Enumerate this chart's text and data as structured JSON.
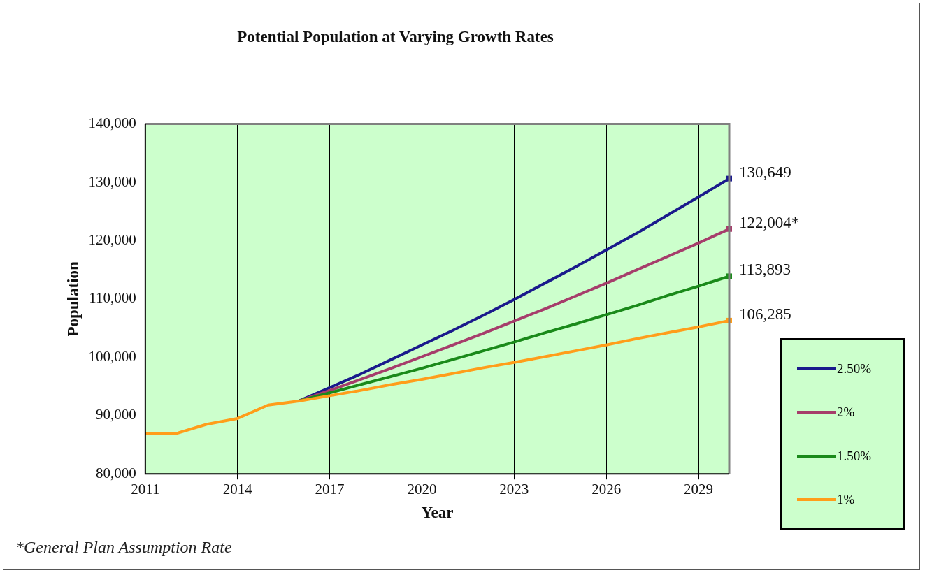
{
  "chart_data": {
    "type": "line",
    "title": "Potential Population at Varying Growth Rates",
    "xlabel": "Year",
    "ylabel": "Population",
    "x": [
      2011,
      2012,
      2013,
      2014,
      2015,
      2016,
      2017,
      2018,
      2019,
      2020,
      2021,
      2022,
      2023,
      2024,
      2025,
      2026,
      2027,
      2028,
      2029,
      2030
    ],
    "xlim": [
      2011,
      2030
    ],
    "xticks": [
      2011,
      2014,
      2017,
      2020,
      2023,
      2026,
      2029
    ],
    "ylim": [
      80000,
      140000
    ],
    "yticks": [
      {
        "value": 80000,
        "label": "80,000"
      },
      {
        "value": 90000,
        "label": "90,000"
      },
      {
        "value": 100000,
        "label": "100,000"
      },
      {
        "value": 110000,
        "label": "110,000"
      },
      {
        "value": 120000,
        "label": "120,000"
      },
      {
        "value": 130000,
        "label": "130,000"
      },
      {
        "value": 140000,
        "label": "140,000"
      }
    ],
    "grid": "x",
    "legend": "bottom right",
    "marker": "none",
    "line_style": "solid",
    "series": [
      {
        "name": "2.50%",
        "color": "#1a1a8c",
        "values": [
          null,
          null,
          null,
          null,
          null,
          92500,
          94800,
          97100,
          99600,
          102100,
          104600,
          107200,
          109900,
          112700,
          115500,
          118400,
          121300,
          124400,
          127500,
          130649
        ],
        "value_labels": [
          null,
          null,
          null,
          null,
          null,
          null,
          null,
          null,
          null,
          null,
          null,
          null,
          null,
          null,
          null,
          null,
          null,
          null,
          null,
          "130,649"
        ]
      },
      {
        "name": "2%",
        "color": "#a63d6b",
        "values": [
          null,
          null,
          null,
          null,
          null,
          92500,
          94300,
          96200,
          98100,
          100100,
          102100,
          104100,
          106200,
          108300,
          110500,
          112700,
          115000,
          117300,
          119600,
          122004
        ],
        "value_labels": [
          null,
          null,
          null,
          null,
          null,
          null,
          null,
          null,
          null,
          null,
          null,
          null,
          null,
          null,
          null,
          null,
          null,
          null,
          null,
          "122,004*"
        ]
      },
      {
        "name": "1.50%",
        "color": "#1a8a1a",
        "values": [
          null,
          null,
          null,
          null,
          null,
          92500,
          93900,
          95300,
          96700,
          98100,
          99600,
          101100,
          102600,
          104200,
          105700,
          107300,
          108900,
          110600,
          112200,
          113893
        ],
        "value_labels": [
          null,
          null,
          null,
          null,
          null,
          null,
          null,
          null,
          null,
          null,
          null,
          null,
          null,
          null,
          null,
          null,
          null,
          null,
          null,
          "113,893"
        ]
      },
      {
        "name": "1%",
        "color": "#ff9d1a",
        "values": [
          86900,
          86900,
          88500,
          89500,
          91800,
          92500,
          93400,
          94300,
          95300,
          96200,
          97200,
          98200,
          99100,
          100100,
          101100,
          102100,
          103200,
          104200,
          105200,
          106285
        ],
        "value_labels": [
          null,
          null,
          null,
          null,
          null,
          null,
          null,
          null,
          null,
          null,
          null,
          null,
          null,
          null,
          null,
          null,
          null,
          null,
          null,
          "106,285"
        ]
      }
    ],
    "annotations": [
      "*General Plan Assumption Rate"
    ]
  }
}
